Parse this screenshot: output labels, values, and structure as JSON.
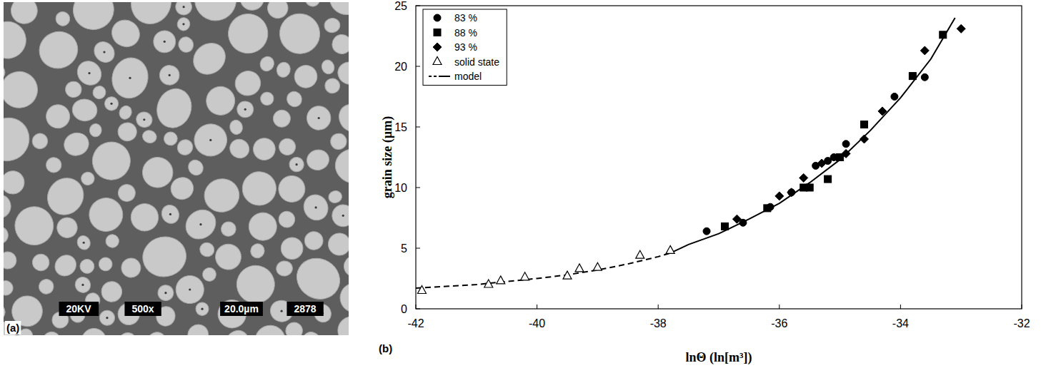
{
  "micrograph": {
    "panel_label": "(a)",
    "info_boxes": [
      "20KV",
      "500x",
      "20.0µm",
      "2878"
    ]
  },
  "chart_data": {
    "type": "scatter",
    "panel_label": "(b)",
    "x_label": "lnΘ (ln[m³])",
    "y_label": "grain size (µm)",
    "xlim": [
      -42,
      -32
    ],
    "ylim": [
      0,
      25
    ],
    "xticks": [
      -42,
      -40,
      -38,
      -36,
      -34,
      -32
    ],
    "yticks": [
      0,
      5,
      10,
      15,
      20,
      25
    ],
    "grid": false,
    "legend": "upper left",
    "series": [
      {
        "name": "83 %",
        "type": "scatter",
        "color": "#000000",
        "marker": "circle",
        "line_style": "none",
        "x": [
          -37.2,
          -36.6,
          -36.15,
          -35.8,
          -35.4,
          -35.2,
          -35.1,
          -34.9,
          -34.1,
          -33.6
        ],
        "values": [
          6.4,
          7.1,
          8.4,
          9.6,
          11.8,
          12.2,
          12.5,
          13.6,
          17.5,
          19.1
        ]
      },
      {
        "name": "88 %",
        "type": "scatter",
        "color": "#000000",
        "marker": "square",
        "line_style": "none",
        "x": [
          -36.9,
          -36.2,
          -35.6,
          -35.5,
          -35.2,
          -35.0,
          -34.6,
          -33.8,
          -33.3
        ],
        "values": [
          6.8,
          8.3,
          10.0,
          10.0,
          10.7,
          12.5,
          15.2,
          19.2,
          22.6
        ]
      },
      {
        "name": "93 %",
        "type": "scatter",
        "color": "#000000",
        "marker": "diamond",
        "line_style": "none",
        "x": [
          -36.7,
          -36.0,
          -35.8,
          -35.6,
          -35.3,
          -34.9,
          -34.6,
          -34.3,
          -33.6,
          -33.0
        ],
        "values": [
          7.4,
          9.3,
          9.6,
          10.8,
          12.0,
          12.8,
          14.0,
          16.3,
          21.3,
          23.1
        ]
      },
      {
        "name": "solid state",
        "type": "scatter",
        "color": "#000000",
        "marker": "triangle-open",
        "line_style": "none",
        "x": [
          -41.9,
          -40.8,
          -40.6,
          -40.2,
          -39.5,
          -39.3,
          -39.0,
          -38.3,
          -37.8
        ],
        "values": [
          1.5,
          2.0,
          2.3,
          2.6,
          2.7,
          3.3,
          3.4,
          4.4,
          4.8
        ]
      },
      {
        "name": "model",
        "type": "line",
        "color": "#000000",
        "marker": "none",
        "line_style": "dashed",
        "x": [
          -42,
          -41.5,
          -41,
          -40.5,
          -40,
          -39.5,
          -39,
          -38.5,
          -38,
          -37.8
        ],
        "values": [
          1.7,
          1.85,
          2.0,
          2.25,
          2.5,
          2.8,
          3.2,
          3.7,
          4.3,
          4.6
        ]
      },
      {
        "name": "model",
        "type": "line",
        "color": "#000000",
        "marker": "none",
        "line_style": "solid",
        "x": [
          -37.8,
          -37.5,
          -37,
          -36.5,
          -36,
          -35.5,
          -35,
          -34.5,
          -34,
          -33.5,
          -33.1
        ],
        "values": [
          4.6,
          5.3,
          6.2,
          7.4,
          8.7,
          10.4,
          12.3,
          14.7,
          17.4,
          20.6,
          24.0
        ]
      }
    ]
  }
}
